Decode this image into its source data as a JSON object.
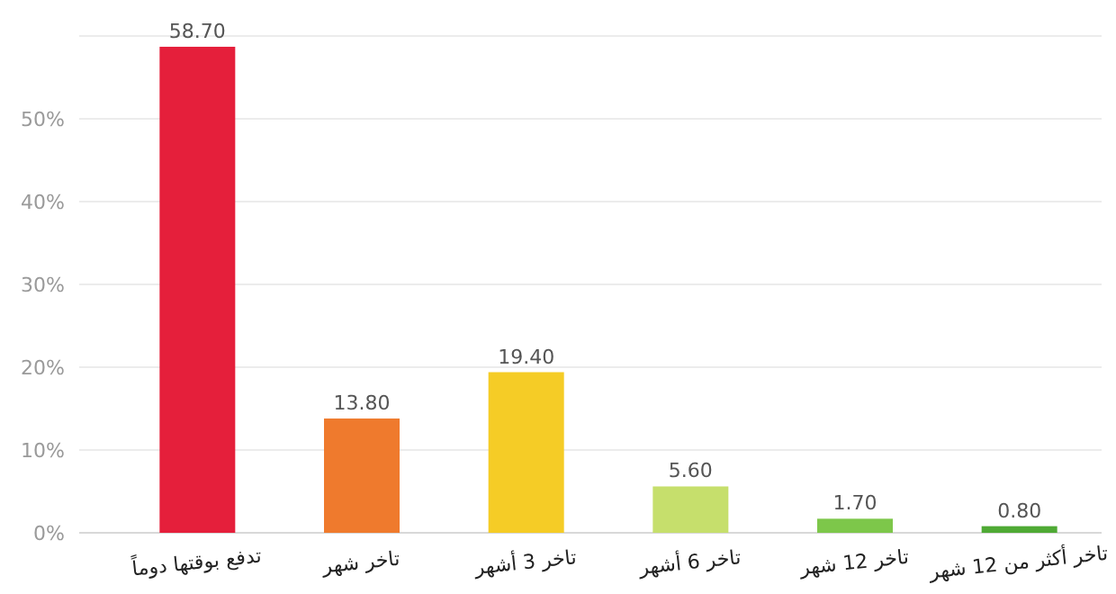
{
  "chart_data": {
    "type": "bar",
    "categories": [
      "تدفع بوقتها دوماً",
      "تاخر شهر",
      "تاخر 3 أشهر",
      "تاخر 6 أشهر",
      "تاخر 12 شهر",
      "تاخر أكثر من 12 شهر"
    ],
    "values": [
      58.7,
      13.8,
      19.4,
      5.6,
      1.7,
      0.8
    ],
    "value_labels": [
      "58.70",
      "13.80",
      "19.40",
      "5.60",
      "1.70",
      "0.80"
    ],
    "colors": [
      "#e51f3b",
      "#ef7a2d",
      "#f5cc26",
      "#c6df6c",
      "#7dc74a",
      "#4faa35"
    ],
    "ylim": [
      0,
      60
    ],
    "yticks": [
      {
        "value": 0,
        "label": "0%"
      },
      {
        "value": 10,
        "label": "10%"
      },
      {
        "value": 20,
        "label": "20%"
      },
      {
        "value": 30,
        "label": "30%"
      },
      {
        "value": 40,
        "label": "40%"
      },
      {
        "value": 50,
        "label": "50%"
      },
      {
        "value": 60,
        "label": null
      }
    ],
    "grid": "y"
  }
}
